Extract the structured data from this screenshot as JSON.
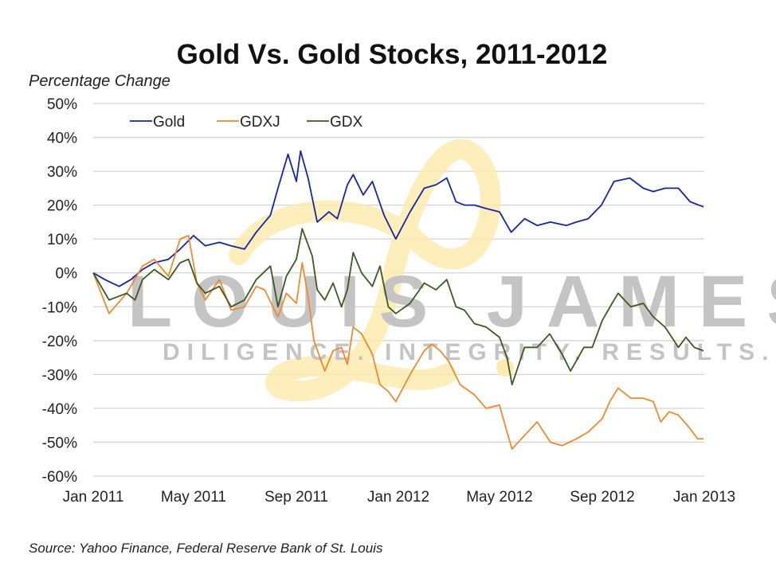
{
  "chart_data": {
    "type": "line",
    "title": "Gold Vs. Gold Stocks, 2011-2012",
    "ylabel": "Percentage Change",
    "xlabel": "",
    "source": "Source: Yahoo Finance, Federal Reserve Bank of St. Louis",
    "watermark": {
      "name": "LOUIS JAMES",
      "tagline": "DILIGENCE. INTEGRITY. RESULTS."
    },
    "ylim": [
      -60,
      50
    ],
    "yticks": [
      50,
      40,
      30,
      20,
      10,
      0,
      -10,
      -20,
      -30,
      -40,
      -50,
      -60
    ],
    "ytick_labels": [
      "50%",
      "40%",
      "30%",
      "20%",
      "10%",
      "0%",
      "-10%",
      "-20%",
      "-30%",
      "-40%",
      "-50%",
      "-60%"
    ],
    "xlim": [
      "2011-01-01",
      "2013-01-01"
    ],
    "xticks": [
      "2011-01-01",
      "2011-05-01",
      "2011-09-01",
      "2012-01-01",
      "2012-05-01",
      "2012-09-01",
      "2013-01-01"
    ],
    "xtick_labels": [
      "Jan 2011",
      "May 2011",
      "Sep 2011",
      "Jan 2012",
      "May 2012",
      "Sep 2012",
      "Jan 2013"
    ],
    "grid": "horizontal",
    "legend": "top-left",
    "series": [
      {
        "name": "Gold",
        "color": "#1426a6",
        "points": [
          [
            "2011-01-01",
            0
          ],
          [
            "2011-01-15",
            -2
          ],
          [
            "2011-02-01",
            -4
          ],
          [
            "2011-02-15",
            -2
          ],
          [
            "2011-03-01",
            1
          ],
          [
            "2011-03-15",
            3
          ],
          [
            "2011-04-01",
            4
          ],
          [
            "2011-04-15",
            7
          ],
          [
            "2011-05-01",
            11
          ],
          [
            "2011-05-15",
            8
          ],
          [
            "2011-06-01",
            9
          ],
          [
            "2011-06-15",
            8
          ],
          [
            "2011-07-01",
            7
          ],
          [
            "2011-07-15",
            12
          ],
          [
            "2011-08-01",
            17
          ],
          [
            "2011-08-10",
            25
          ],
          [
            "2011-08-22",
            35
          ],
          [
            "2011-09-01",
            27
          ],
          [
            "2011-09-06",
            36
          ],
          [
            "2011-09-15",
            28
          ],
          [
            "2011-09-26",
            15
          ],
          [
            "2011-10-10",
            18
          ],
          [
            "2011-10-20",
            16
          ],
          [
            "2011-11-01",
            26
          ],
          [
            "2011-11-08",
            29
          ],
          [
            "2011-11-20",
            23
          ],
          [
            "2011-12-01",
            27
          ],
          [
            "2011-12-15",
            17
          ],
          [
            "2011-12-29",
            10
          ],
          [
            "2012-01-15",
            18
          ],
          [
            "2012-02-01",
            25
          ],
          [
            "2012-02-15",
            26
          ],
          [
            "2012-02-28",
            28
          ],
          [
            "2012-03-10",
            21
          ],
          [
            "2012-03-20",
            20
          ],
          [
            "2012-04-01",
            20
          ],
          [
            "2012-04-15",
            19
          ],
          [
            "2012-05-01",
            18
          ],
          [
            "2012-05-15",
            12
          ],
          [
            "2012-05-31",
            16
          ],
          [
            "2012-06-15",
            14
          ],
          [
            "2012-07-01",
            15
          ],
          [
            "2012-07-20",
            14
          ],
          [
            "2012-08-01",
            15
          ],
          [
            "2012-08-15",
            16
          ],
          [
            "2012-08-31",
            20
          ],
          [
            "2012-09-15",
            27
          ],
          [
            "2012-10-04",
            28
          ],
          [
            "2012-10-20",
            25
          ],
          [
            "2012-11-01",
            24
          ],
          [
            "2012-11-15",
            25
          ],
          [
            "2012-12-01",
            25
          ],
          [
            "2012-12-15",
            21
          ],
          [
            "2012-12-31",
            19.5
          ]
        ]
      },
      {
        "name": "GDXJ",
        "color": "#f08a30",
        "points": [
          [
            "2011-01-01",
            0
          ],
          [
            "2011-01-20",
            -12
          ],
          [
            "2011-02-10",
            -6
          ],
          [
            "2011-03-01",
            2
          ],
          [
            "2011-03-15",
            4
          ],
          [
            "2011-04-01",
            -1
          ],
          [
            "2011-04-15",
            10
          ],
          [
            "2011-04-25",
            11
          ],
          [
            "2011-05-05",
            -3
          ],
          [
            "2011-05-15",
            -8
          ],
          [
            "2011-06-01",
            -2
          ],
          [
            "2011-06-15",
            -11
          ],
          [
            "2011-07-01",
            -10
          ],
          [
            "2011-07-15",
            -4
          ],
          [
            "2011-07-25",
            -5
          ],
          [
            "2011-08-10",
            -13
          ],
          [
            "2011-08-20",
            -6
          ],
          [
            "2011-09-01",
            -9
          ],
          [
            "2011-09-08",
            3
          ],
          [
            "2011-09-15",
            -7
          ],
          [
            "2011-09-22",
            -20
          ],
          [
            "2011-10-05",
            -29
          ],
          [
            "2011-10-15",
            -23
          ],
          [
            "2011-10-25",
            -22
          ],
          [
            "2011-11-01",
            -27
          ],
          [
            "2011-11-08",
            -16
          ],
          [
            "2011-11-18",
            -18
          ],
          [
            "2011-12-01",
            -24
          ],
          [
            "2011-12-10",
            -33
          ],
          [
            "2011-12-20",
            -35
          ],
          [
            "2011-12-29",
            -38
          ],
          [
            "2012-01-15",
            -30
          ],
          [
            "2012-02-01",
            -23
          ],
          [
            "2012-02-10",
            -21
          ],
          [
            "2012-02-20",
            -23
          ],
          [
            "2012-03-01",
            -26
          ],
          [
            "2012-03-15",
            -33
          ],
          [
            "2012-04-01",
            -36
          ],
          [
            "2012-04-15",
            -40
          ],
          [
            "2012-05-01",
            -39
          ],
          [
            "2012-05-10",
            -47
          ],
          [
            "2012-05-16",
            -52
          ],
          [
            "2012-05-31",
            -48
          ],
          [
            "2012-06-15",
            -44
          ],
          [
            "2012-07-01",
            -50
          ],
          [
            "2012-07-15",
            -51
          ],
          [
            "2012-08-01",
            -49
          ],
          [
            "2012-08-15",
            -47
          ],
          [
            "2012-09-01",
            -43
          ],
          [
            "2012-09-10",
            -38
          ],
          [
            "2012-09-20",
            -34
          ],
          [
            "2012-10-05",
            -37
          ],
          [
            "2012-10-20",
            -37
          ],
          [
            "2012-11-01",
            -38
          ],
          [
            "2012-11-10",
            -44
          ],
          [
            "2012-11-20",
            -41
          ],
          [
            "2012-12-01",
            -42
          ],
          [
            "2012-12-15",
            -46
          ],
          [
            "2012-12-24",
            -49
          ],
          [
            "2012-12-31",
            -49
          ]
        ]
      },
      {
        "name": "GDX",
        "color": "#3b5a1f",
        "points": [
          [
            "2011-01-01",
            0
          ],
          [
            "2011-01-20",
            -8
          ],
          [
            "2011-02-10",
            -6
          ],
          [
            "2011-02-20",
            -8
          ],
          [
            "2011-03-01",
            -2
          ],
          [
            "2011-03-15",
            1
          ],
          [
            "2011-04-01",
            -2
          ],
          [
            "2011-04-15",
            3
          ],
          [
            "2011-04-25",
            4
          ],
          [
            "2011-05-05",
            -3
          ],
          [
            "2011-05-15",
            -6
          ],
          [
            "2011-06-01",
            -4
          ],
          [
            "2011-06-15",
            -10
          ],
          [
            "2011-07-01",
            -8
          ],
          [
            "2011-07-15",
            -2
          ],
          [
            "2011-08-01",
            2
          ],
          [
            "2011-08-10",
            -10
          ],
          [
            "2011-08-20",
            -1
          ],
          [
            "2011-09-01",
            4
          ],
          [
            "2011-09-08",
            13
          ],
          [
            "2011-09-20",
            5
          ],
          [
            "2011-09-26",
            -5
          ],
          [
            "2011-10-05",
            -8
          ],
          [
            "2011-10-15",
            -3
          ],
          [
            "2011-10-25",
            -10
          ],
          [
            "2011-11-01",
            -5
          ],
          [
            "2011-11-08",
            6
          ],
          [
            "2011-11-18",
            0
          ],
          [
            "2011-12-01",
            -4
          ],
          [
            "2011-12-10",
            2
          ],
          [
            "2011-12-20",
            -10
          ],
          [
            "2011-12-29",
            -12
          ],
          [
            "2012-01-15",
            -9
          ],
          [
            "2012-02-01",
            -3
          ],
          [
            "2012-02-15",
            -5
          ],
          [
            "2012-02-28",
            -2
          ],
          [
            "2012-03-10",
            -10
          ],
          [
            "2012-03-20",
            -11
          ],
          [
            "2012-04-01",
            -15
          ],
          [
            "2012-04-15",
            -16
          ],
          [
            "2012-05-01",
            -19
          ],
          [
            "2012-05-10",
            -25
          ],
          [
            "2012-05-16",
            -33
          ],
          [
            "2012-05-31",
            -22
          ],
          [
            "2012-06-15",
            -22
          ],
          [
            "2012-06-30",
            -18
          ],
          [
            "2012-07-15",
            -24
          ],
          [
            "2012-07-25",
            -29
          ],
          [
            "2012-08-10",
            -22
          ],
          [
            "2012-08-20",
            -22
          ],
          [
            "2012-09-01",
            -14
          ],
          [
            "2012-09-15",
            -8
          ],
          [
            "2012-09-20",
            -6
          ],
          [
            "2012-10-05",
            -10
          ],
          [
            "2012-10-20",
            -9
          ],
          [
            "2012-11-01",
            -13
          ],
          [
            "2012-11-15",
            -16
          ],
          [
            "2012-12-01",
            -22
          ],
          [
            "2012-12-10",
            -19
          ],
          [
            "2012-12-20",
            -22
          ],
          [
            "2012-12-31",
            -23
          ]
        ]
      }
    ]
  }
}
